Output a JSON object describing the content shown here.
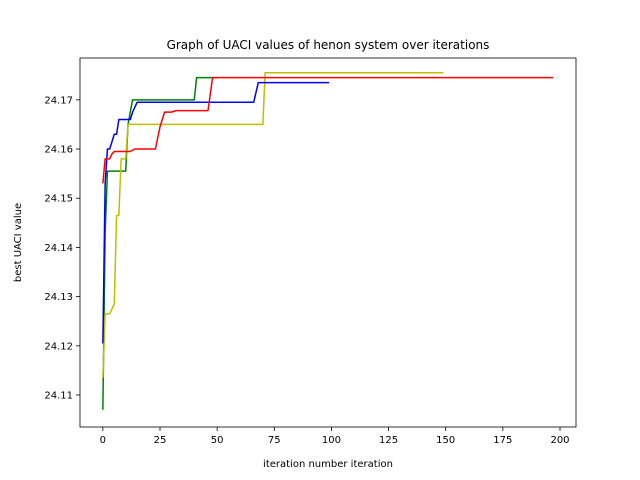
{
  "chart_data": {
    "type": "line",
    "title": "Graph of UACI values of henon system over iterations",
    "xlabel": "iteration number iteration",
    "ylabel": "best UACI value",
    "xlim": [
      -10,
      207
    ],
    "ylim": [
      24.1035,
      24.1785
    ],
    "xticks": [
      0,
      25,
      50,
      75,
      100,
      125,
      150,
      175,
      200
    ],
    "xtick_labels": [
      "0",
      "25",
      "50",
      "75",
      "100",
      "125",
      "150",
      "175",
      "200"
    ],
    "yticks": [
      24.11,
      24.12,
      24.13,
      24.14,
      24.15,
      24.16,
      24.17
    ],
    "ytick_labels": [
      "24.11",
      "24.12",
      "24.13",
      "24.14",
      "24.15",
      "24.16",
      "24.17"
    ],
    "grid": false,
    "legend": "none",
    "series": [
      {
        "color": "#008000",
        "points": [
          [
            0,
            24.107
          ],
          [
            1,
            24.143
          ],
          [
            2,
            24.1555
          ],
          [
            10,
            24.1555
          ],
          [
            11,
            24.165
          ],
          [
            13,
            24.17
          ],
          [
            40,
            24.17
          ],
          [
            41,
            24.1745
          ],
          [
            50,
            24.1745
          ]
        ]
      },
      {
        "color": "#bfbf00",
        "points": [
          [
            0,
            24.1135
          ],
          [
            1,
            24.1265
          ],
          [
            3,
            24.1265
          ],
          [
            5,
            24.1285
          ],
          [
            6,
            24.1465
          ],
          [
            7,
            24.1465
          ],
          [
            8,
            24.158
          ],
          [
            10,
            24.158
          ],
          [
            11,
            24.165
          ],
          [
            70,
            24.165
          ],
          [
            71,
            24.1755
          ],
          [
            149,
            24.1755
          ]
        ]
      },
      {
        "color": "#0000ff",
        "points": [
          [
            0,
            24.1205
          ],
          [
            1,
            24.153
          ],
          [
            2,
            24.16
          ],
          [
            3,
            24.16
          ],
          [
            4,
            24.1615
          ],
          [
            5,
            24.163
          ],
          [
            6,
            24.163
          ],
          [
            7,
            24.166
          ],
          [
            12,
            24.166
          ],
          [
            13,
            24.1675
          ],
          [
            15,
            24.1695
          ],
          [
            66,
            24.1695
          ],
          [
            68,
            24.1735
          ],
          [
            99,
            24.1735
          ]
        ]
      },
      {
        "color": "#ff0000",
        "points": [
          [
            0,
            24.153
          ],
          [
            1,
            24.158
          ],
          [
            3,
            24.158
          ],
          [
            4,
            24.159
          ],
          [
            5,
            24.1595
          ],
          [
            12,
            24.1595
          ],
          [
            14,
            24.16
          ],
          [
            23,
            24.16
          ],
          [
            25,
            24.1645
          ],
          [
            27,
            24.1675
          ],
          [
            30,
            24.1675
          ],
          [
            32,
            24.1678
          ],
          [
            46,
            24.1678
          ],
          [
            48,
            24.1745
          ],
          [
            197,
            24.1745
          ]
        ]
      }
    ]
  }
}
